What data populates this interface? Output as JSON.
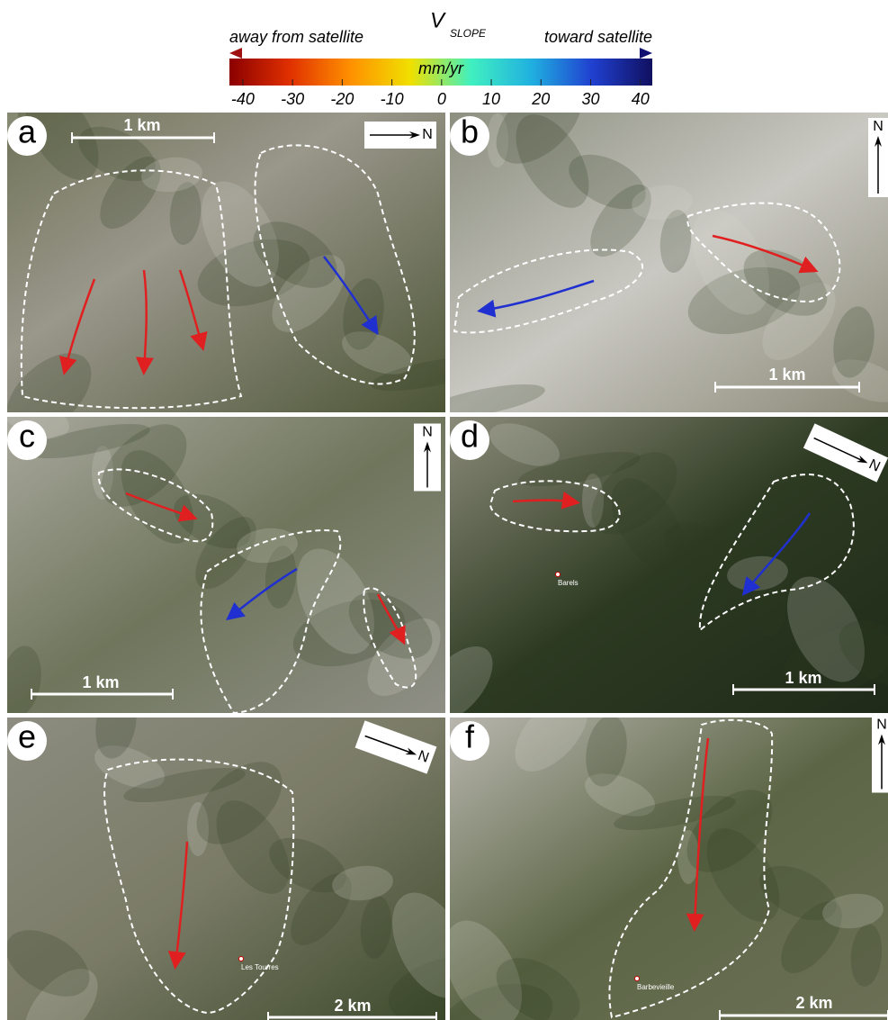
{
  "colorbar": {
    "title": "V",
    "title_subscript": "SLOPE",
    "left_label": "away from satellite",
    "right_label": "toward satellite",
    "unit": "mm/yr",
    "range": [
      -42.7,
      42.4
    ],
    "ticks": [
      -40,
      -30,
      -20,
      -10,
      0,
      10,
      20,
      30,
      40
    ],
    "colors": [
      "#8b0000",
      "#e03000",
      "#ff9000",
      "#f0e000",
      "#40f0c0",
      "#20b0e0",
      "#2040d0",
      "#101060"
    ]
  },
  "panels": [
    {
      "label": "a",
      "scale": "1 km",
      "north": "N"
    },
    {
      "label": "b",
      "scale": "1 km",
      "north": "N"
    },
    {
      "label": "c",
      "scale": "1 km",
      "north": "N"
    },
    {
      "label": "d",
      "scale": "1 km",
      "north": "N",
      "place": "Barels"
    },
    {
      "label": "e",
      "scale": "2 km",
      "north": "N",
      "place": "Les Tourres"
    },
    {
      "label": "f",
      "scale": "2 km",
      "north": "N",
      "place": "Barbevieille"
    }
  ]
}
